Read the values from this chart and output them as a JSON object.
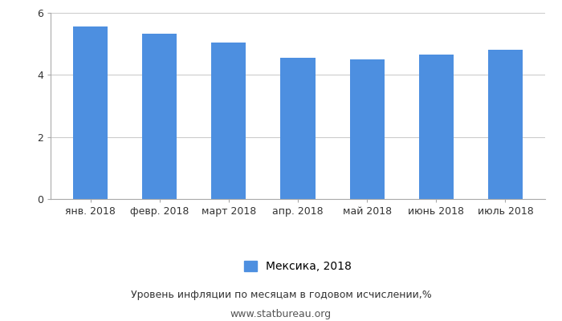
{
  "categories": [
    "янв. 2018",
    "февр. 2018",
    "март 2018",
    "апр. 2018",
    "май 2018",
    "июнь 2018",
    "июль 2018"
  ],
  "values": [
    5.55,
    5.34,
    5.04,
    4.55,
    4.51,
    4.65,
    4.81
  ],
  "bar_color": "#4d8fe0",
  "ylim": [
    0,
    6
  ],
  "yticks": [
    0,
    2,
    4,
    6
  ],
  "legend_label": "Мексика, 2018",
  "xlabel_bottom": "Уровень инфляции по месяцам в годовом исчислении,%",
  "source": "www.statbureau.org",
  "background_color": "#ffffff",
  "grid_color": "#cccccc",
  "tick_fontsize": 9,
  "label_fontsize": 9,
  "legend_fontsize": 10,
  "source_fontsize": 9
}
